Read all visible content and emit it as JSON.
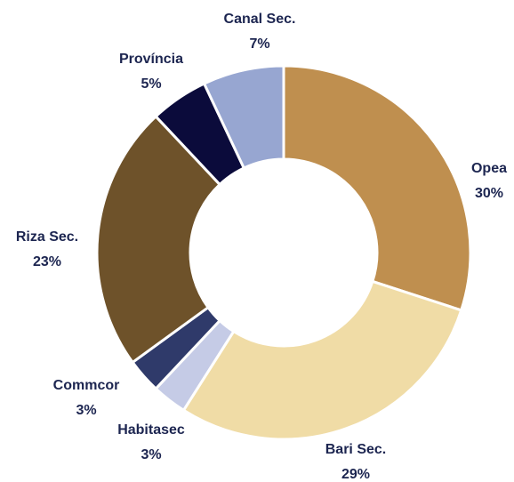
{
  "chart_data": {
    "type": "donut",
    "categories": [
      "Opea",
      "Bari Sec.",
      "Habitasec",
      "Commcor",
      "Riza Sec.",
      "Província",
      "Canal Sec."
    ],
    "values": [
      30,
      29,
      3,
      3,
      23,
      5,
      7
    ],
    "value_labels": [
      "30%",
      "29%",
      "3%",
      "3%",
      "23%",
      "5%",
      "7%"
    ],
    "colors": [
      "#bf8f4f",
      "#f0dca6",
      "#c5cbe6",
      "#2f3a6a",
      "#6e522a",
      "#0b0b3b",
      "#97a6d1"
    ]
  }
}
